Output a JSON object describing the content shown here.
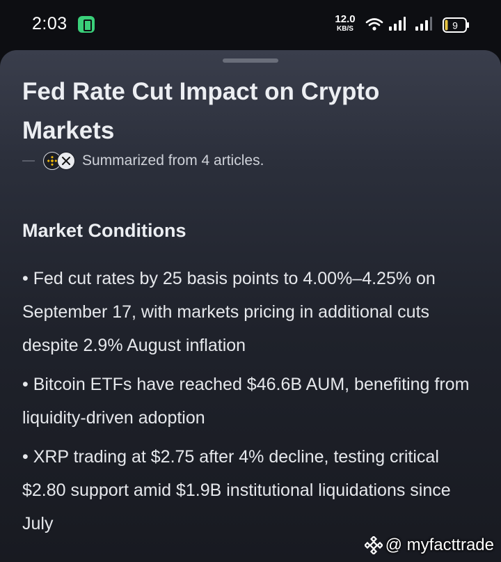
{
  "status_bar": {
    "time": "2:03",
    "net_speed_value": "12.0",
    "net_speed_unit": "KB/S",
    "battery_level": "9",
    "icons": [
      "battery-saver-icon",
      "wifi-icon",
      "signal-icon",
      "signal-icon",
      "battery-icon"
    ]
  },
  "article": {
    "title": "Fed Rate Cut Impact on Crypto Markets",
    "source_summary": "Summarized from 4 articles.",
    "source_icons": [
      "binance-icon",
      "x-icon"
    ],
    "section": {
      "heading": "Market Conditions",
      "bullets": [
        "• Fed cut rates by 25 basis points to 4.00%–4.25% on September 17, with markets pricing in additional cuts despite 2.9% August inflation",
        "• Bitcoin ETFs have reached $46.6B AUM, benefiting from liquidity-driven adoption",
        "• XRP trading at $2.75 after 4% decline, testing critical $2.80 support amid $1.9B institutional liquidations since July"
      ]
    }
  },
  "watermark": {
    "handle": "@ myfacttrade"
  },
  "colors": {
    "background": "#0d0e12",
    "sheet_top": "#3a3e4c",
    "sheet_bottom": "#181a21",
    "battery_saver": "#3ad07a",
    "text": "#e6e8ec"
  }
}
